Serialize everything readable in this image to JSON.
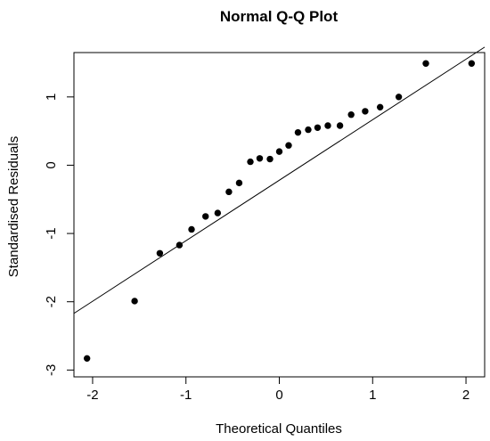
{
  "chart_data": {
    "type": "scatter",
    "title": "Normal Q-Q Plot",
    "xlabel": "Theoretical Quantiles",
    "ylabel": "Standardised Residuals",
    "xlim": [
      -2.2,
      2.2
    ],
    "ylim": [
      -3.1,
      1.65
    ],
    "x_ticks": [
      -2,
      -1,
      0,
      1,
      2
    ],
    "x_tick_labels": [
      "-2",
      "-1",
      "0",
      "1",
      "2"
    ],
    "y_ticks": [
      -3,
      -2,
      -1,
      0,
      1
    ],
    "y_tick_labels": [
      "-3",
      "-2",
      "-1",
      "0",
      "1"
    ],
    "grid": false,
    "points": {
      "x": [
        -2.06,
        -1.55,
        -1.28,
        -1.07,
        -0.94,
        -0.79,
        -0.66,
        -0.54,
        -0.43,
        -0.31,
        -0.21,
        -0.1,
        0.0,
        0.1,
        0.2,
        0.31,
        0.41,
        0.52,
        0.65,
        0.77,
        0.92,
        1.08,
        1.28,
        1.57,
        2.06
      ],
      "y": [
        -2.83,
        -1.99,
        -1.29,
        -1.17,
        -0.94,
        -0.75,
        -0.7,
        -0.39,
        -0.26,
        0.05,
        0.1,
        0.09,
        0.2,
        0.29,
        0.48,
        0.52,
        0.55,
        0.58,
        0.58,
        0.74,
        0.79,
        0.85,
        1.0,
        1.49,
        1.49
      ]
    },
    "reference_line": {
      "x": [
        -2.2,
        2.2
      ],
      "y": [
        -2.17,
        1.73
      ]
    }
  }
}
